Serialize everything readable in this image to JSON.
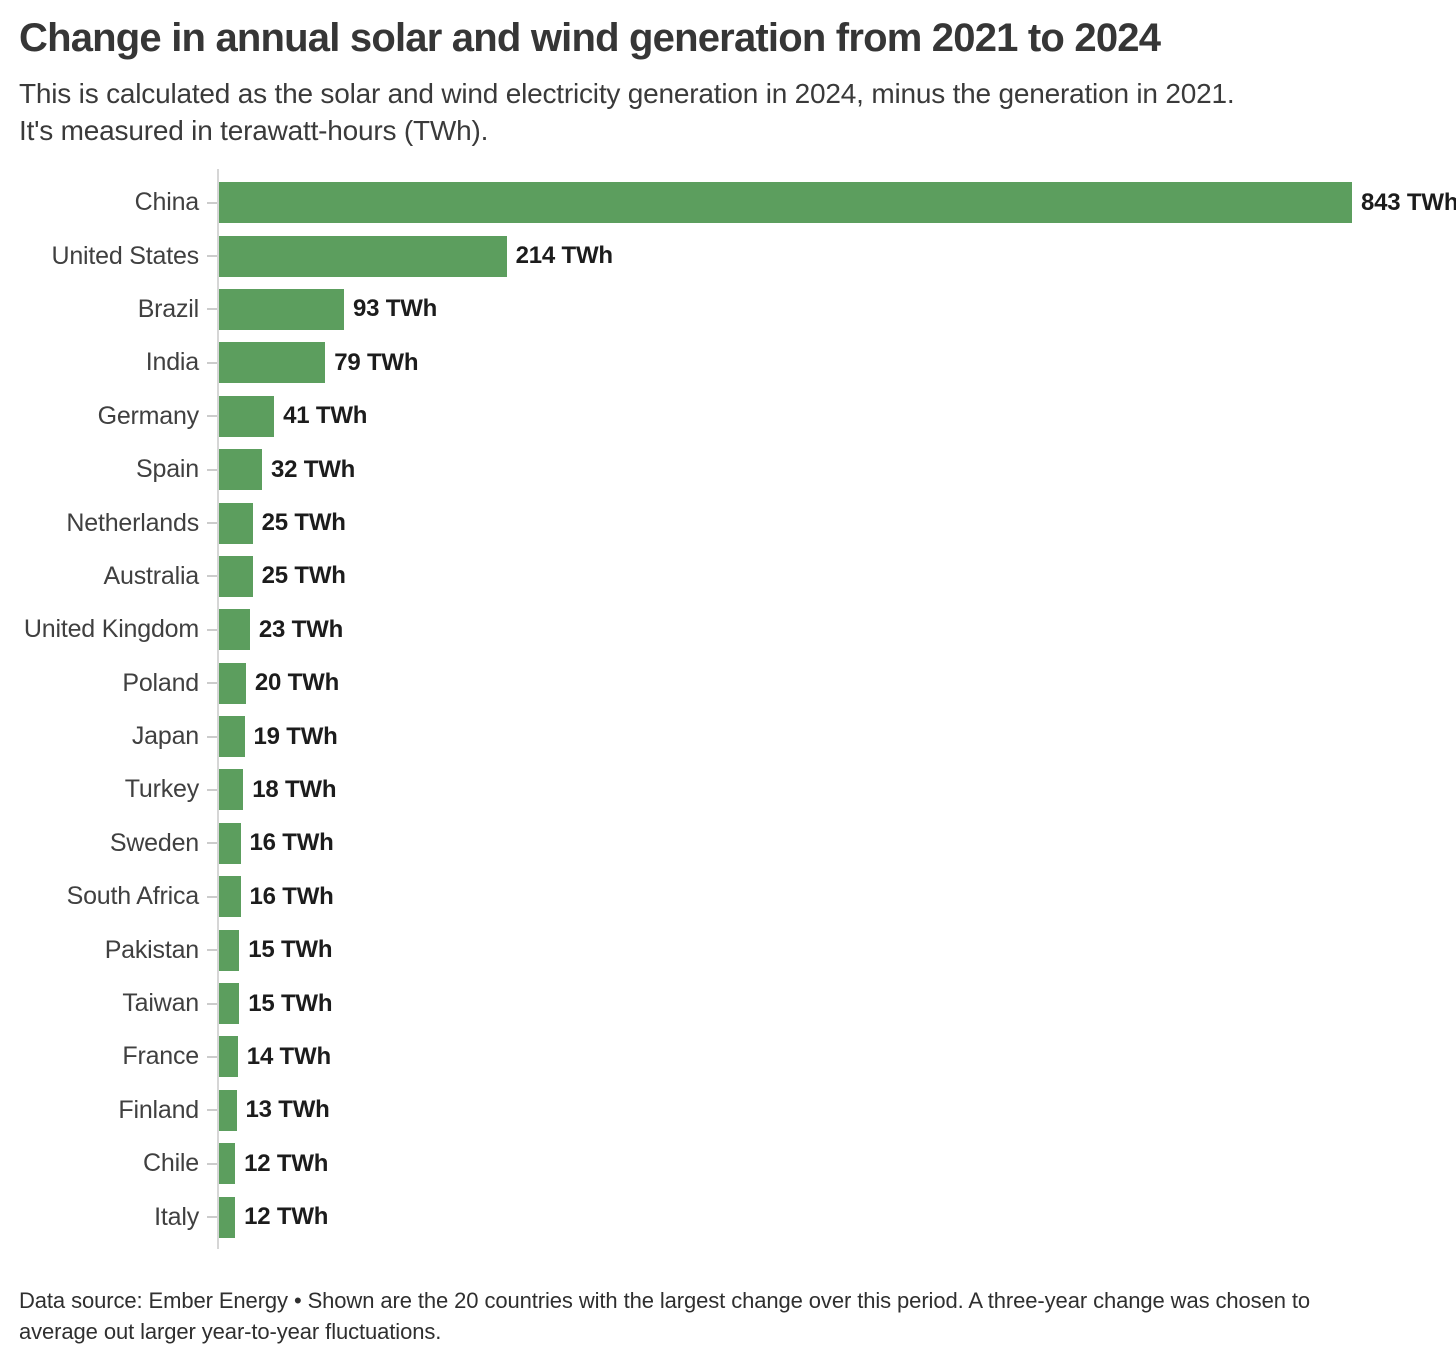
{
  "header": {
    "title": "Change in annual solar and wind generation from 2021 to 2024",
    "subtitle_lines": [
      "This is calculated as the solar and wind electricity generation in 2024, minus the generation in 2021.",
      "It's measured in terawatt-hours (TWh)."
    ]
  },
  "chart_data": {
    "type": "bar",
    "orientation": "horizontal",
    "title": "Change in annual solar and wind generation from 2021 to 2024",
    "unit": "TWh",
    "value_suffix": " TWh",
    "bar_color": "#5c9e5e",
    "grid": false,
    "legend": "none",
    "xlim": [
      0,
      880
    ],
    "categories": [
      "China",
      "United States",
      "Brazil",
      "India",
      "Germany",
      "Spain",
      "Netherlands",
      "Australia",
      "United Kingdom",
      "Poland",
      "Japan",
      "Turkey",
      "Sweden",
      "South Africa",
      "Pakistan",
      "Taiwan",
      "France",
      "Finland",
      "Chile",
      "Italy"
    ],
    "values": [
      843,
      214,
      93,
      79,
      41,
      32,
      25,
      25,
      23,
      20,
      19,
      18,
      16,
      16,
      15,
      15,
      14,
      13,
      12,
      12
    ],
    "value_labels": [
      "843 TWh",
      "214 TWh",
      "93 TWh",
      "79 TWh",
      "41 TWh",
      "32 TWh",
      "25 TWh",
      "25 TWh",
      "23 TWh",
      "20 TWh",
      "19 TWh",
      "18 TWh",
      "16 TWh",
      "16 TWh",
      "15 TWh",
      "15 TWh",
      "14 TWh",
      "13 TWh",
      "12 TWh",
      "12 TWh"
    ]
  },
  "footer": {
    "lines": [
      "Data source: Ember Energy • Shown are the 20 countries with the largest change over this period. A three-year change was chosen to",
      "average out larger year-to-year fluctuations."
    ],
    "full_text": "Data source: Ember Energy • Shown are the 20 countries with the largest change over this period. A three-year change was chosen to average out larger year-to-year fluctuations."
  },
  "colors": {
    "bar_green": "#5c9e5e",
    "title_text": "#363636",
    "body_text": "#3a3a3a",
    "value_text": "#1c1c1c",
    "axis_gray": "#d6d6d6"
  }
}
